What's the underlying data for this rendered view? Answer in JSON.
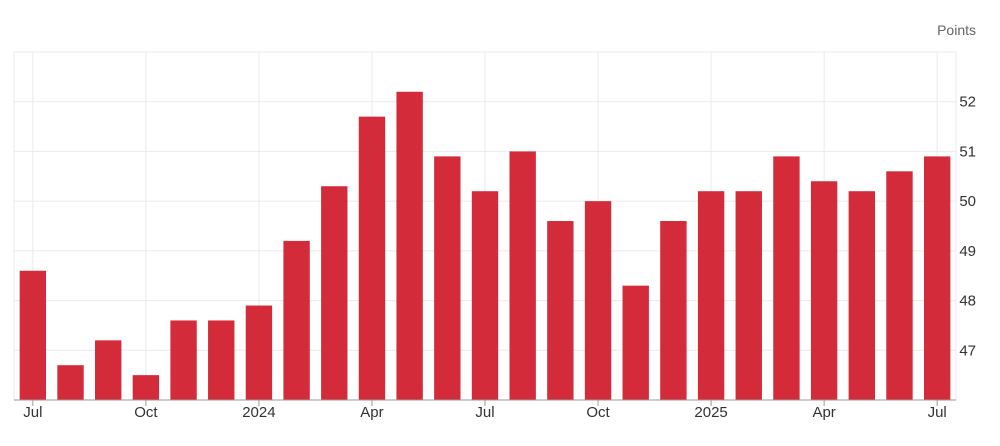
{
  "chart_data": {
    "type": "bar",
    "unit_label": "Points",
    "x": [
      "2023-07",
      "2023-08",
      "2023-09",
      "2023-10",
      "2023-11",
      "2023-12",
      "2024-01",
      "2024-02",
      "2024-03",
      "2024-04",
      "2024-05",
      "2024-06",
      "2024-07",
      "2024-08",
      "2024-09",
      "2024-10",
      "2024-11",
      "2024-12",
      "2025-01",
      "2025-02",
      "2025-03",
      "2025-04",
      "2025-05",
      "2025-06",
      "2025-07"
    ],
    "values": [
      48.6,
      46.7,
      47.2,
      46.5,
      47.6,
      47.6,
      47.9,
      49.2,
      50.3,
      51.7,
      52.2,
      50.9,
      50.2,
      51.0,
      49.6,
      50.0,
      48.3,
      49.6,
      50.2,
      50.2,
      50.9,
      50.4,
      50.2,
      50.6,
      50.9
    ],
    "x_tick_labels": [
      {
        "index": 0,
        "label": "Jul"
      },
      {
        "index": 3,
        "label": "Oct"
      },
      {
        "index": 6,
        "label": "2024"
      },
      {
        "index": 9,
        "label": "Apr"
      },
      {
        "index": 12,
        "label": "Jul"
      },
      {
        "index": 15,
        "label": "Oct"
      },
      {
        "index": 18,
        "label": "2025"
      },
      {
        "index": 21,
        "label": "Apr"
      },
      {
        "index": 24,
        "label": "Jul"
      }
    ],
    "y_ticks": [
      47,
      48,
      49,
      50,
      51,
      52
    ],
    "ylim": [
      46,
      53
    ],
    "y_axis_position": "right",
    "grid": true,
    "bar_color": "#d32b3a",
    "grid_color": "#ebebeb"
  }
}
